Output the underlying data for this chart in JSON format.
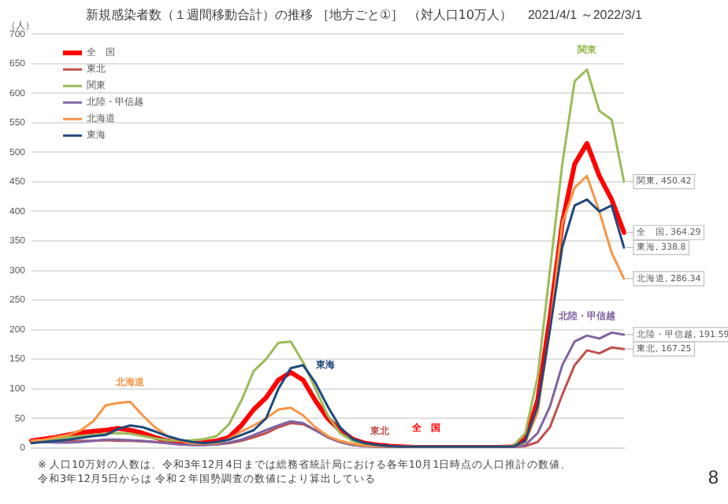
{
  "chart_data": {
    "type": "line",
    "title": "新規感染者数（１週間移動合計）の推移 ［地方ごと①］ （対人口10万人）",
    "subtitle": "2021/4/1 ～2022/3/1",
    "ylabel": "（人）",
    "categories": [
      null,
      null,
      null,
      null,
      null,
      null,
      null,
      null,
      null,
      null,
      null,
      null,
      null,
      null,
      null,
      null,
      null,
      null,
      null,
      null,
      null,
      null,
      null,
      null,
      null,
      null,
      null,
      null,
      null,
      null,
      null,
      null,
      null,
      null,
      null,
      null,
      null,
      null,
      null,
      null,
      null,
      null,
      null,
      null,
      null,
      null,
      null,
      null,
      null
    ],
    "series": [
      {
        "name": "全　国",
        "color": "#ff0000",
        "values": [
          12,
          15,
          18,
          22,
          26,
          28,
          30,
          33,
          30,
          25,
          18,
          12,
          9,
          8,
          9,
          12,
          18,
          38,
          65,
          85,
          115,
          128,
          115,
          80,
          50,
          30,
          15,
          8,
          5,
          3,
          2,
          1,
          1,
          1,
          1,
          1,
          1,
          1,
          1,
          2,
          15,
          80,
          220,
          380,
          480,
          515,
          460,
          420,
          364.29
        ],
        "value_labels": [
          null,
          null,
          null,
          null,
          null,
          null,
          null,
          null,
          null,
          null,
          null,
          null,
          null,
          null,
          null,
          null,
          null,
          null,
          null,
          null,
          null,
          null,
          null,
          null,
          null,
          null,
          null,
          null,
          null,
          null,
          null,
          null,
          null,
          null,
          null,
          null,
          null,
          null,
          null,
          null,
          null,
          null,
          null,
          null,
          null,
          null,
          null,
          null,
          "全　国, 364.29"
        ]
      },
      {
        "name": "東北",
        "color": "#c0504d",
        "values": [
          10,
          10,
          10,
          11,
          12,
          12,
          13,
          12,
          12,
          11,
          10,
          8,
          6,
          5,
          5,
          6,
          8,
          12,
          18,
          25,
          35,
          42,
          40,
          30,
          18,
          10,
          5,
          3,
          2,
          1,
          1,
          1,
          1,
          1,
          1,
          1,
          1,
          1,
          1,
          1,
          3,
          10,
          35,
          90,
          140,
          165,
          160,
          170,
          167.25
        ],
        "value_labels": [
          null,
          null,
          null,
          null,
          null,
          null,
          null,
          null,
          null,
          null,
          null,
          null,
          null,
          null,
          null,
          null,
          null,
          null,
          null,
          null,
          null,
          null,
          null,
          null,
          null,
          null,
          null,
          null,
          null,
          null,
          null,
          null,
          null,
          null,
          null,
          null,
          null,
          null,
          null,
          null,
          null,
          null,
          null,
          null,
          null,
          null,
          null,
          null,
          "東北, 167.25"
        ]
      },
      {
        "name": "関東",
        "color": "#9bbb59",
        "values": [
          10,
          12,
          15,
          18,
          20,
          22,
          24,
          25,
          24,
          20,
          16,
          13,
          12,
          13,
          15,
          20,
          40,
          80,
          130,
          150,
          178,
          180,
          145,
          100,
          55,
          25,
          12,
          6,
          4,
          2,
          2,
          2,
          2,
          2,
          2,
          2,
          2,
          2,
          2,
          3,
          25,
          120,
          300,
          480,
          620,
          640,
          570,
          555,
          450.42
        ],
        "value_labels": [
          null,
          null,
          null,
          null,
          null,
          null,
          null,
          null,
          null,
          null,
          null,
          null,
          null,
          null,
          null,
          null,
          null,
          null,
          null,
          null,
          null,
          null,
          null,
          null,
          null,
          null,
          null,
          null,
          null,
          null,
          null,
          null,
          null,
          null,
          null,
          null,
          null,
          null,
          null,
          null,
          null,
          null,
          null,
          null,
          null,
          null,
          null,
          null,
          "関東, 450.42"
        ]
      },
      {
        "name": "北陸・甲信越",
        "color": "#8064a2",
        "values": [
          10,
          10,
          9,
          9,
          10,
          12,
          14,
          14,
          13,
          12,
          10,
          8,
          6,
          5,
          5,
          6,
          9,
          14,
          22,
          30,
          38,
          45,
          42,
          30,
          18,
          10,
          5,
          3,
          2,
          1,
          1,
          1,
          1,
          1,
          1,
          1,
          1,
          1,
          1,
          1,
          5,
          25,
          70,
          140,
          180,
          190,
          185,
          195,
          191.59
        ],
        "value_labels": [
          null,
          null,
          null,
          null,
          null,
          null,
          null,
          null,
          null,
          null,
          null,
          null,
          null,
          null,
          null,
          null,
          null,
          null,
          null,
          null,
          null,
          null,
          null,
          null,
          null,
          null,
          null,
          null,
          null,
          null,
          null,
          null,
          null,
          null,
          null,
          null,
          null,
          null,
          null,
          null,
          null,
          null,
          null,
          null,
          null,
          null,
          null,
          null,
          "北陸・甲信越, 191.59"
        ]
      },
      {
        "name": "北海道",
        "color": "#f79646",
        "values": [
          12,
          14,
          18,
          22,
          30,
          45,
          72,
          76,
          78,
          55,
          35,
          20,
          12,
          8,
          7,
          8,
          15,
          28,
          38,
          50,
          65,
          68,
          55,
          35,
          20,
          12,
          7,
          4,
          3,
          2,
          2,
          2,
          2,
          2,
          2,
          2,
          2,
          2,
          2,
          2,
          10,
          60,
          200,
          380,
          440,
          460,
          400,
          330,
          286.34
        ],
        "value_labels": [
          null,
          null,
          null,
          null,
          null,
          null,
          null,
          null,
          null,
          null,
          null,
          null,
          null,
          null,
          null,
          null,
          null,
          null,
          null,
          null,
          null,
          null,
          null,
          null,
          null,
          null,
          null,
          null,
          null,
          null,
          null,
          null,
          null,
          null,
          null,
          null,
          null,
          null,
          null,
          null,
          null,
          null,
          null,
          null,
          null,
          null,
          null,
          null,
          "北海道, 286.34"
        ]
      },
      {
        "name": "東海",
        "color": "#1f497d",
        "values": [
          8,
          10,
          12,
          14,
          17,
          20,
          22,
          32,
          38,
          35,
          28,
          20,
          14,
          10,
          8,
          10,
          14,
          22,
          30,
          50,
          100,
          135,
          140,
          110,
          70,
          35,
          15,
          8,
          5,
          3,
          2,
          2,
          2,
          2,
          2,
          2,
          2,
          2,
          2,
          2,
          12,
          70,
          200,
          340,
          410,
          420,
          400,
          410,
          338.8
        ],
        "value_labels": [
          null,
          null,
          null,
          null,
          null,
          null,
          null,
          null,
          null,
          null,
          null,
          null,
          null,
          null,
          null,
          null,
          null,
          null,
          null,
          null,
          null,
          null,
          null,
          null,
          null,
          null,
          null,
          null,
          null,
          null,
          null,
          null,
          null,
          null,
          null,
          null,
          null,
          null,
          null,
          null,
          null,
          null,
          null,
          null,
          null,
          null,
          null,
          null,
          "東海, 338.8"
        ]
      }
    ],
    "ylim": [
      0,
      700
    ],
    "yticks": [
      0,
      50,
      100,
      150,
      200,
      250,
      300,
      350,
      400,
      450,
      500,
      550,
      600,
      650,
      700
    ],
    "grid": "y",
    "legend": "top left",
    "tick_labels": "y",
    "annotations": [
      "※ 人口10万対の人数は、令和3年12月4日までは総務省統計局における各年10月1日時点の人口推計の数値、",
      "令和3年12月5日からは 令和２年国勢調査の数値により算出している",
      "8"
    ]
  }
}
